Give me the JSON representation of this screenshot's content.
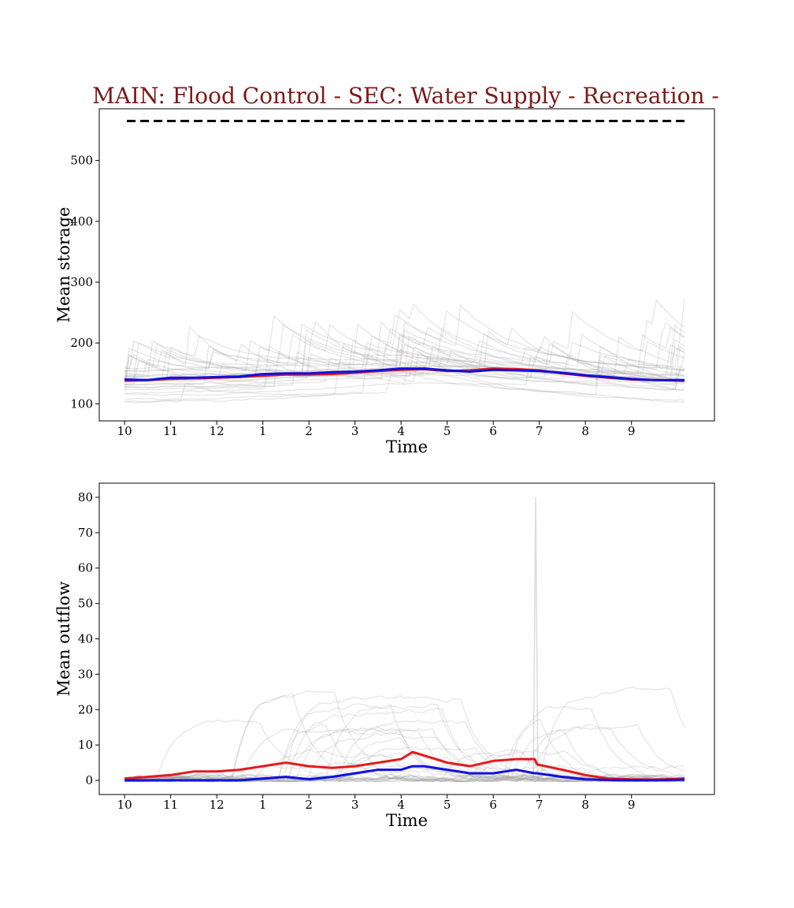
{
  "figure": {
    "title": "MAIN: Flood Control - SEC: Water Supply - Recreation -",
    "title_color": "#7b1a1a"
  },
  "colors": {
    "red_series": "#e41a1c",
    "blue_series": "#1010e0",
    "gray_ensemble": "#9a9a9a",
    "capacity_line": "#000000"
  },
  "chart_data": [
    {
      "type": "line",
      "xlabel": "Time",
      "ylabel": "Mean storage",
      "x_tick_labels": [
        "10",
        "11",
        "12",
        "1",
        "2",
        "3",
        "4",
        "5",
        "6",
        "7",
        "8",
        "9"
      ],
      "x_tick_positions": [
        0,
        1,
        2,
        3,
        4,
        5,
        6,
        7,
        8,
        9,
        10,
        11
      ],
      "xlim": [
        -0.55,
        12.8
      ],
      "ylim": [
        72,
        585
      ],
      "yticks": [
        100,
        200,
        300,
        400,
        500
      ],
      "grid": false,
      "reference_line": {
        "value": 565,
        "x_range": [
          0.05,
          12.15
        ],
        "style": "dashed"
      },
      "x": [
        0,
        0.5,
        1,
        1.5,
        2,
        2.5,
        3,
        3.5,
        4,
        4.5,
        5,
        5.5,
        6,
        6.5,
        7,
        7.5,
        8,
        8.5,
        9,
        9.5,
        10,
        10.5,
        11,
        11.5,
        12.15
      ],
      "series": [
        {
          "color_key": "red_series",
          "values": [
            138,
            139,
            141,
            142,
            143,
            144,
            146,
            148,
            148,
            149,
            151,
            154,
            156,
            157,
            154,
            155,
            158,
            157,
            155,
            150,
            146,
            143,
            140,
            139,
            138
          ]
        },
        {
          "color_key": "blue_series",
          "values": [
            140,
            139,
            143,
            143,
            144,
            145,
            149,
            150,
            150,
            152,
            153,
            155,
            158,
            158,
            155,
            153,
            156,
            155,
            154,
            151,
            147,
            144,
            141,
            139,
            139
          ]
        }
      ],
      "ensemble_count": 30
    },
    {
      "type": "line",
      "xlabel": "Time",
      "ylabel": "Mean outflow",
      "x_tick_labels": [
        "10",
        "11",
        "12",
        "1",
        "2",
        "3",
        "4",
        "5",
        "6",
        "7",
        "8",
        "9"
      ],
      "x_tick_positions": [
        0,
        1,
        2,
        3,
        4,
        5,
        6,
        7,
        8,
        9,
        10,
        11
      ],
      "xlim": [
        -0.55,
        12.8
      ],
      "ylim": [
        -4,
        84
      ],
      "yticks": [
        0,
        10,
        20,
        30,
        40,
        50,
        60,
        70,
        80
      ],
      "grid": false,
      "x": [
        0,
        0.5,
        1,
        1.5,
        2,
        2.5,
        3,
        3.5,
        4,
        4.5,
        5,
        5.5,
        6,
        6.25,
        6.5,
        7,
        7.5,
        8,
        8.5,
        8.9,
        8.95,
        9.5,
        10,
        10.5,
        11,
        11.5,
        12.15
      ],
      "series": [
        {
          "color_key": "red_series",
          "values": [
            0.5,
            1,
            1.5,
            2.5,
            2.5,
            3,
            4,
            5,
            4,
            3.5,
            4,
            5,
            6,
            8,
            7,
            5,
            4,
            5.5,
            6,
            6,
            4.5,
            3,
            1.5,
            0.5,
            0.3,
            0.2,
            0.5
          ]
        },
        {
          "color_key": "blue_series",
          "values": [
            0,
            0,
            0,
            0,
            0,
            0,
            0.5,
            1,
            0.3,
            1,
            2,
            3,
            3,
            4,
            4,
            3,
            2,
            2,
            3,
            2,
            2,
            1,
            0.3,
            0.1,
            0,
            0,
            0.2
          ]
        }
      ],
      "ensemble_count": 30,
      "outlier_spike": {
        "x": 8.92,
        "value": 80
      }
    }
  ]
}
